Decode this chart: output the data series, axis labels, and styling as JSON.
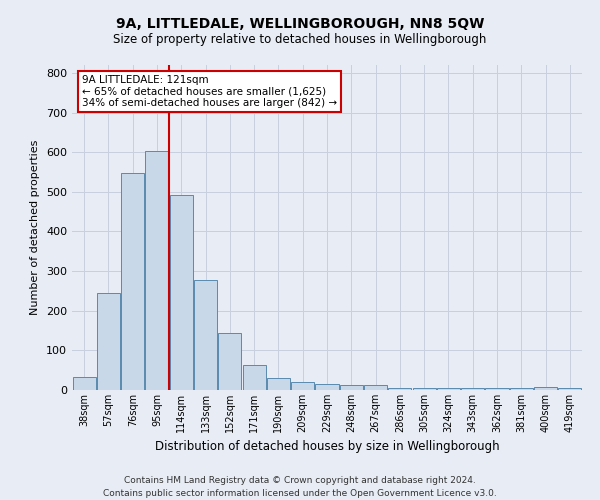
{
  "title": "9A, LITTLEDALE, WELLINGBOROUGH, NN8 5QW",
  "subtitle": "Size of property relative to detached houses in Wellingborough",
  "xlabel": "Distribution of detached houses by size in Wellingborough",
  "ylabel": "Number of detached properties",
  "footer1": "Contains HM Land Registry data © Crown copyright and database right 2024.",
  "footer2": "Contains public sector information licensed under the Open Government Licence v3.0.",
  "categories": [
    "38sqm",
    "57sqm",
    "76sqm",
    "95sqm",
    "114sqm",
    "133sqm",
    "152sqm",
    "171sqm",
    "190sqm",
    "209sqm",
    "229sqm",
    "248sqm",
    "267sqm",
    "286sqm",
    "305sqm",
    "324sqm",
    "343sqm",
    "362sqm",
    "381sqm",
    "400sqm",
    "419sqm"
  ],
  "values": [
    32,
    245,
    547,
    603,
    493,
    278,
    143,
    62,
    30,
    20,
    15,
    13,
    12,
    5,
    5,
    5,
    5,
    5,
    5,
    8,
    5
  ],
  "bar_color": "#c8d8e8",
  "bar_edge_color": "#5a8ab0",
  "grid_color": "#c8d0e0",
  "bg_color": "#e8edf5",
  "vline_color": "#cc0000",
  "vline_x": 3.5,
  "annotation_text": "9A LITTLEDALE: 121sqm\n← 65% of detached houses are smaller (1,625)\n34% of semi-detached houses are larger (842) →",
  "annotation_box_color": "#ffffff",
  "annotation_box_edge": "#cc0000",
  "ylim": [
    0,
    820
  ],
  "yticks": [
    0,
    100,
    200,
    300,
    400,
    500,
    600,
    700,
    800
  ],
  "title_fontsize": 10,
  "subtitle_fontsize": 8.5
}
